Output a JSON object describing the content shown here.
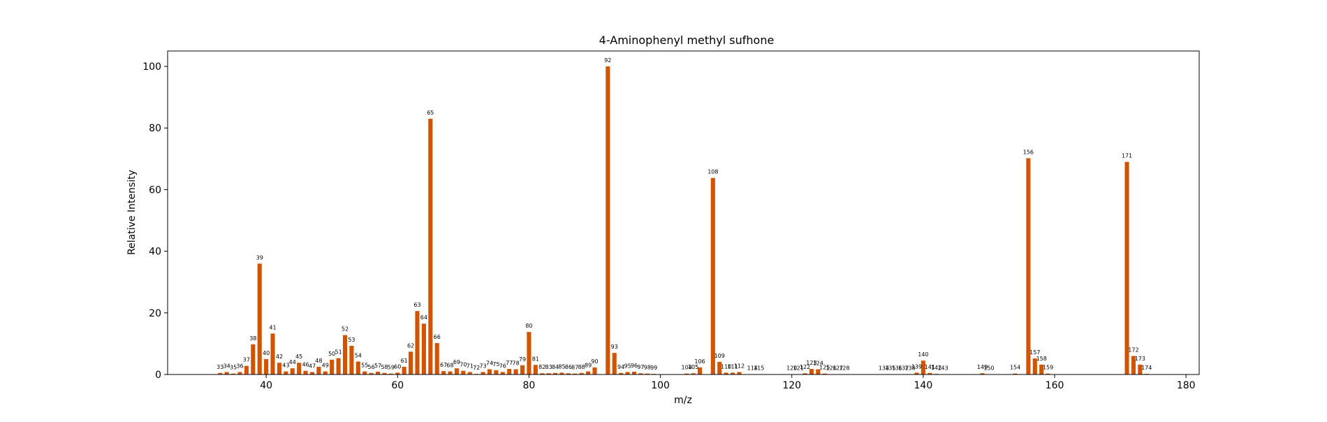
{
  "chart_data": {
    "type": "bar",
    "title": "4-Aminophenyl methyl sufhone",
    "xlabel": "m/z",
    "ylabel": "Relative Intensity",
    "xlim": [
      25,
      182
    ],
    "ylim": [
      0,
      105
    ],
    "xticks": [
      40,
      60,
      80,
      100,
      120,
      140,
      160,
      180
    ],
    "yticks": [
      0,
      20,
      40,
      60,
      80,
      100
    ],
    "grid": false,
    "bar_color": "#d35400",
    "x": [
      33,
      34,
      35,
      36,
      37,
      38,
      39,
      40,
      41,
      42,
      43,
      44,
      45,
      46,
      47,
      48,
      49,
      50,
      51,
      52,
      53,
      54,
      55,
      56,
      57,
      58,
      59,
      60,
      61,
      62,
      63,
      64,
      65,
      66,
      67,
      68,
      69,
      70,
      71,
      72,
      73,
      74,
      75,
      76,
      77,
      78,
      79,
      80,
      81,
      82,
      83,
      84,
      85,
      86,
      87,
      88,
      89,
      90,
      92,
      93,
      94,
      95,
      96,
      97,
      98,
      99,
      104,
      105,
      106,
      108,
      109,
      110,
      111,
      112,
      114,
      115,
      120,
      121,
      122,
      123,
      124,
      125,
      126,
      127,
      128,
      134,
      135,
      136,
      137,
      138,
      139,
      140,
      141,
      142,
      143,
      149,
      150,
      154,
      156,
      157,
      158,
      159,
      171,
      172,
      173,
      174
    ],
    "values": [
      0.5,
      0.8,
      0.3,
      0.8,
      2.8,
      9.8,
      36.0,
      5.0,
      13.3,
      3.8,
      1.0,
      2.0,
      3.8,
      1.2,
      0.8,
      2.5,
      1.0,
      4.8,
      5.3,
      12.8,
      9.3,
      4.2,
      1.0,
      0.5,
      0.9,
      0.5,
      0.3,
      0.6,
      2.5,
      7.4,
      20.6,
      16.5,
      83.0,
      10.2,
      1.1,
      1.0,
      2.0,
      1.2,
      0.8,
      0.2,
      0.8,
      1.7,
      1.4,
      0.8,
      1.8,
      1.7,
      3.0,
      13.8,
      3.1,
      0.4,
      0.4,
      0.5,
      0.6,
      0.4,
      0.3,
      0.5,
      1.0,
      2.3,
      100.0,
      7.0,
      0.5,
      0.8,
      0.9,
      0.4,
      0.3,
      0.2,
      0.3,
      0.4,
      2.3,
      63.8,
      4.1,
      0.6,
      0.6,
      0.8,
      0.1,
      0.1,
      0.1,
      0.1,
      0.4,
      1.8,
      1.7,
      0.3,
      0.1,
      0.1,
      0.1,
      0.1,
      0.1,
      0.1,
      0.1,
      0.1,
      0.6,
      4.5,
      0.5,
      0.2,
      0.1,
      0.4,
      0.1,
      0.3,
      70.2,
      5.2,
      3.2,
      0.3,
      69.0,
      6.0,
      3.2,
      0.2
    ]
  }
}
